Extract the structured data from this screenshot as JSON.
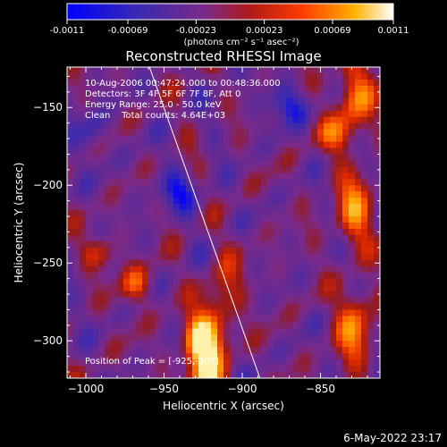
{
  "colorbar": {
    "ticks": [
      "-0.0011",
      "-0.00069",
      "-0.00023",
      "0.00023",
      "0.00069",
      "0.0011"
    ],
    "tick_values": [
      -0.0011,
      -0.00069,
      -0.00023,
      0.00023,
      0.00069,
      0.0011
    ],
    "range": [
      -0.0011,
      0.0011
    ],
    "unit_label": "(photons cm⁻² s⁻¹ asec⁻²)"
  },
  "chart_data": {
    "type": "heatmap",
    "title": "Reconstructed RHESSI Image",
    "xlabel": "Heliocentric X (arcsec)",
    "ylabel": "Heliocentric Y (arcsec)",
    "xlim": [
      -1012,
      -812
    ],
    "ylim": [
      -324,
      -124
    ],
    "x_ticks": [
      -1000,
      -950,
      -900,
      -850
    ],
    "x_tick_labels": [
      "−1000",
      "−950",
      "−900",
      "−850"
    ],
    "y_ticks": [
      -150,
      -200,
      -250,
      -300
    ],
    "y_tick_labels": [
      "−150",
      "−200",
      "−250",
      "−300"
    ],
    "limb_line": [
      [
        -960,
        -122
      ],
      [
        -888,
        -326
      ]
    ],
    "peak_position": [
      -925,
      -308
    ],
    "info_lines": [
      "10-Aug-2006 00:47:24.000 to 00:48:36.000",
      "Detectors: 3F 4F 5F 6F 7F 8F, Att 0",
      "Energy Range: 25.0 - 50.0 keV",
      "Clean    Total counts: 4.64E+03"
    ],
    "peak_label": "Position of Peak = [-925,-308]",
    "colors": {
      "background": "#000000",
      "foreground": "#ffffff",
      "colormap": [
        "#0000ff",
        "#5a2a9a",
        "#7a2a8a",
        "#8a1a1a",
        "#ff2a00",
        "#ff9a00",
        "#ffffff"
      ]
    }
  },
  "footer": {
    "timestamp": "6-May-2022 23:17"
  }
}
